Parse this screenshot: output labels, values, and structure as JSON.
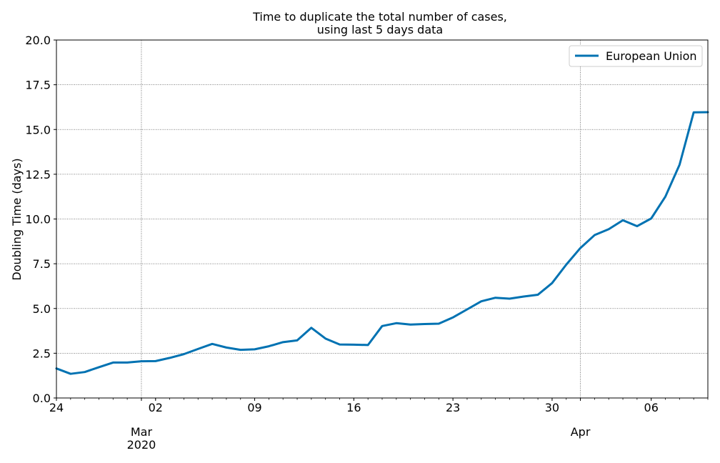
{
  "chart_data": {
    "type": "line",
    "title_line1": "Time to duplicate the total number of cases,",
    "title_line2": "using last 5 days data",
    "xlabel": "",
    "ylabel": "Doubling Time (days)",
    "ylim": [
      0,
      20
    ],
    "yticks": [
      "0.0",
      "2.5",
      "5.0",
      "7.5",
      "10.0",
      "12.5",
      "15.0",
      "17.5",
      "20.0"
    ],
    "xlim": [
      "2020-02-24",
      "2020-04-10"
    ],
    "xticks": [
      {
        "date": "2020-02-24",
        "label": "24"
      },
      {
        "date": "2020-03-02",
        "label": "02"
      },
      {
        "date": "2020-03-09",
        "label": "09"
      },
      {
        "date": "2020-03-16",
        "label": "16"
      },
      {
        "date": "2020-03-23",
        "label": "23"
      },
      {
        "date": "2020-03-30",
        "label": "30"
      },
      {
        "date": "2020-04-06",
        "label": "06"
      }
    ],
    "month_labels": [
      {
        "date": "2020-03-01",
        "label": "Mar",
        "year": "2020"
      },
      {
        "date": "2020-04-01",
        "label": "Apr",
        "year": ""
      }
    ],
    "grid": true,
    "legend_position": "top-right",
    "series": [
      {
        "name": "European Union",
        "color": "#0072b2",
        "x": [
          "2020-02-24",
          "2020-02-25",
          "2020-02-26",
          "2020-02-27",
          "2020-02-28",
          "2020-02-29",
          "2020-03-01",
          "2020-03-02",
          "2020-03-03",
          "2020-03-04",
          "2020-03-05",
          "2020-03-06",
          "2020-03-07",
          "2020-03-08",
          "2020-03-09",
          "2020-03-10",
          "2020-03-11",
          "2020-03-12",
          "2020-03-13",
          "2020-03-14",
          "2020-03-15",
          "2020-03-16",
          "2020-03-17",
          "2020-03-18",
          "2020-03-19",
          "2020-03-20",
          "2020-03-21",
          "2020-03-22",
          "2020-03-23",
          "2020-03-24",
          "2020-03-25",
          "2020-03-26",
          "2020-03-27",
          "2020-03-28",
          "2020-03-29",
          "2020-03-30",
          "2020-03-31",
          "2020-04-01",
          "2020-04-02",
          "2020-04-03",
          "2020-04-04",
          "2020-04-05",
          "2020-04-06",
          "2020-04-07",
          "2020-04-08",
          "2020-04-09",
          "2020-04-10"
        ],
        "y": [
          1.65,
          1.35,
          1.45,
          1.72,
          1.98,
          1.98,
          2.05,
          2.06,
          2.24,
          2.45,
          2.74,
          3.02,
          2.82,
          2.69,
          2.72,
          2.89,
          3.12,
          3.22,
          3.92,
          3.32,
          2.99,
          2.98,
          2.96,
          4.02,
          4.18,
          4.1,
          4.13,
          4.15,
          4.5,
          4.95,
          5.4,
          5.6,
          5.55,
          5.67,
          5.77,
          6.42,
          7.45,
          8.38,
          9.1,
          9.43,
          9.93,
          9.6,
          10.03,
          11.25,
          13.03,
          15.96,
          15.97
        ]
      }
    ]
  }
}
